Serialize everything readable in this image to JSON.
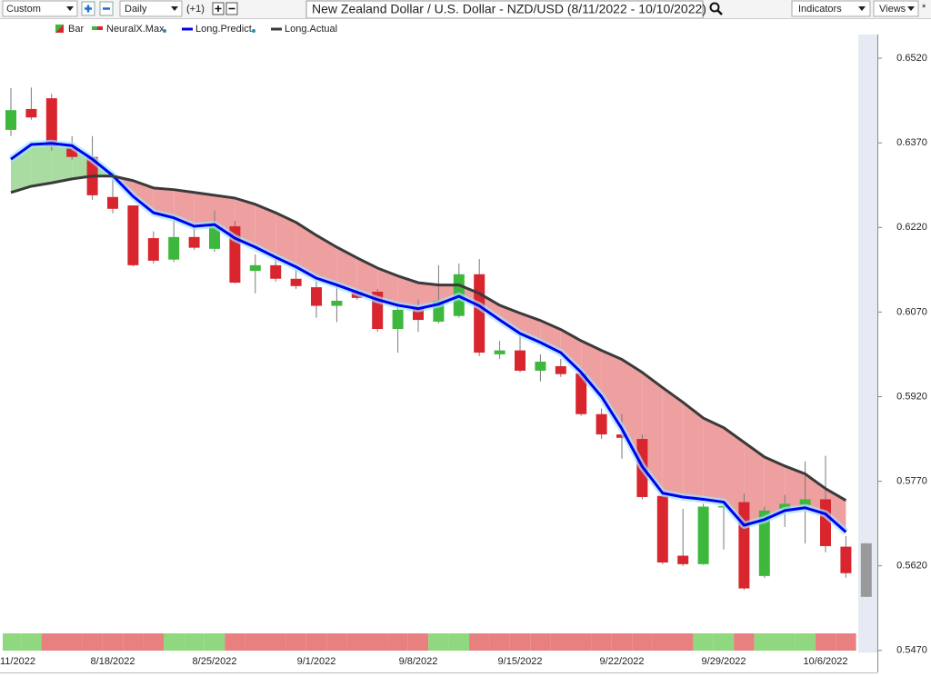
{
  "toolbar": {
    "interval": "Custom",
    "period": "Daily",
    "offset": "(+1)",
    "indicators": "Indicators",
    "views": "Views",
    "star": "*"
  },
  "chart_data": {
    "type": "candlestick",
    "title": "New Zealand Dollar / U.S. Dollar - NZD/USD (8/11/2022 - 10/10/2022)",
    "categories": [
      "11/2022",
      null,
      null,
      null,
      null,
      "8/18/2022",
      null,
      null,
      null,
      null,
      "8/25/2022",
      null,
      null,
      null,
      null,
      "9/1/2022",
      null,
      null,
      null,
      null,
      "9/8/2022",
      null,
      null,
      null,
      null,
      "9/15/2022",
      null,
      null,
      null,
      null,
      "9/22/2022",
      null,
      null,
      null,
      null,
      "9/29/2022",
      null,
      null,
      null,
      null,
      "10/6/2022",
      null,
      null
    ],
    "candles": {
      "name": "Bar",
      "up_color": "#3db83d",
      "down_color": "#d9252e",
      "current_color": "#9a9a9a",
      "open": [
        0.6393,
        0.643,
        0.6449,
        0.6361,
        0.6345,
        0.6274,
        0.6259,
        0.6201,
        0.6163,
        0.6203,
        0.6182,
        0.6222,
        0.6143,
        0.6153,
        0.6129,
        0.6114,
        0.6081,
        0.6106,
        0.6106,
        0.604,
        0.6076,
        0.6053,
        0.6063,
        0.6137,
        0.5995,
        0.6002,
        0.5966,
        0.5974,
        0.5961,
        0.5889,
        0.5853,
        0.5845,
        0.5744,
        0.5638,
        0.5623,
        0.5725,
        0.5733,
        0.5602,
        0.5721,
        0.5728,
        0.5738,
        0.5654,
        0.566
      ],
      "high": [
        0.6467,
        0.6468,
        0.6457,
        0.6382,
        0.6382,
        0.6317,
        0.6259,
        0.6213,
        0.6242,
        0.6221,
        0.625,
        0.6232,
        0.6172,
        0.6164,
        0.6148,
        0.6124,
        0.6116,
        0.6111,
        0.6111,
        0.6087,
        0.6092,
        0.6153,
        0.6156,
        0.6164,
        0.6019,
        0.6031,
        0.5995,
        0.5987,
        0.5971,
        0.5899,
        0.5889,
        0.5853,
        0.5754,
        0.5721,
        0.573,
        0.573,
        0.5749,
        0.5725,
        0.5746,
        0.5805,
        0.5815,
        0.5673,
        0.566
      ],
      "low": [
        0.6382,
        0.6411,
        0.6356,
        0.634,
        0.6269,
        0.6245,
        0.6151,
        0.6156,
        0.6159,
        0.618,
        0.6177,
        0.6121,
        0.6103,
        0.6124,
        0.6111,
        0.606,
        0.6052,
        0.6092,
        0.6035,
        0.5998,
        0.6035,
        0.605,
        0.606,
        0.5992,
        0.5987,
        0.5963,
        0.5947,
        0.5955,
        0.5886,
        0.5845,
        0.581,
        0.5738,
        0.5623,
        0.562,
        0.5622,
        0.5649,
        0.5577,
        0.5599,
        0.5689,
        0.566,
        0.5644,
        0.5599,
        0.5565
      ],
      "close": [
        0.6428,
        0.6415,
        0.6364,
        0.6345,
        0.6277,
        0.6253,
        0.6153,
        0.6161,
        0.6203,
        0.6184,
        0.6222,
        0.6122,
        0.6153,
        0.6129,
        0.6116,
        0.6081,
        0.609,
        0.6095,
        0.604,
        0.6074,
        0.6056,
        0.609,
        0.6137,
        0.5998,
        0.6002,
        0.5966,
        0.5982,
        0.596,
        0.5889,
        0.5853,
        0.5847,
        0.5742,
        0.5626,
        0.5623,
        0.5725,
        0.5726,
        0.558,
        0.5718,
        0.573,
        0.5738,
        0.5655,
        0.5607,
        0.5565
      ]
    },
    "signal": {
      "name": "NeuralX.Max",
      "up_color": "#90d880",
      "down_color": "#e88080",
      "values": [
        1,
        1,
        -1,
        -1,
        -1,
        -1,
        -1,
        -1,
        1,
        1,
        1,
        -1,
        -1,
        -1,
        -1,
        -1,
        -1,
        -1,
        -1,
        -1,
        -1,
        1,
        1,
        -1,
        -1,
        -1,
        -1,
        -1,
        -1,
        -1,
        -1,
        -1,
        -1,
        -1,
        1,
        1,
        -1,
        1,
        1,
        1,
        -1,
        -1,
        null
      ]
    },
    "series": [
      {
        "name": "Long.Predict",
        "color": "#0000ee",
        "values": [
          0.6341,
          0.6367,
          0.6369,
          0.6365,
          0.6341,
          0.6312,
          0.6275,
          0.6246,
          0.6237,
          0.6222,
          0.6225,
          0.6201,
          0.6185,
          0.6167,
          0.615,
          0.613,
          0.6118,
          0.6105,
          0.6092,
          0.6082,
          0.6076,
          0.6084,
          0.6098,
          0.6081,
          0.6056,
          0.6032,
          0.6016,
          0.5998,
          0.5963,
          0.592,
          0.5863,
          0.5796,
          0.5749,
          0.5742,
          0.5738,
          0.5733,
          0.5692,
          0.5702,
          0.5718,
          0.5723,
          0.5712,
          0.568,
          null
        ]
      },
      {
        "name": "Long.Actual",
        "color": "#3a3a3a",
        "values": [
          0.6282,
          0.6293,
          0.6299,
          0.6306,
          0.6311,
          0.6311,
          0.6303,
          0.629,
          0.6287,
          0.6282,
          0.6277,
          0.6272,
          0.6261,
          0.6246,
          0.6229,
          0.6206,
          0.6185,
          0.6166,
          0.6148,
          0.6134,
          0.6122,
          0.6118,
          0.6118,
          0.6103,
          0.6082,
          0.6068,
          0.6055,
          0.6039,
          0.6019,
          0.6002,
          0.5986,
          0.5963,
          0.5936,
          0.591,
          0.5882,
          0.5865,
          0.5839,
          0.5813,
          0.5797,
          0.5783,
          0.5757,
          0.5736,
          null
        ]
      }
    ],
    "fill_above_color": "#a8dca0",
    "fill_below_color": "#eea0a0",
    "ylim": [
      0.5431,
      0.6562
    ],
    "yticks": [
      {
        "value": 0.652,
        "label": "0.6520"
      },
      {
        "value": 0.637,
        "label": "0.6370"
      },
      {
        "value": 0.622,
        "label": "0.6220"
      },
      {
        "value": 0.607,
        "label": "0.6070"
      },
      {
        "value": 0.592,
        "label": "0.5920"
      },
      {
        "value": 0.577,
        "label": "0.5770"
      },
      {
        "value": 0.562,
        "label": "0.5620"
      },
      {
        "value": 0.547,
        "label": "0.5470"
      }
    ],
    "grid": false
  }
}
